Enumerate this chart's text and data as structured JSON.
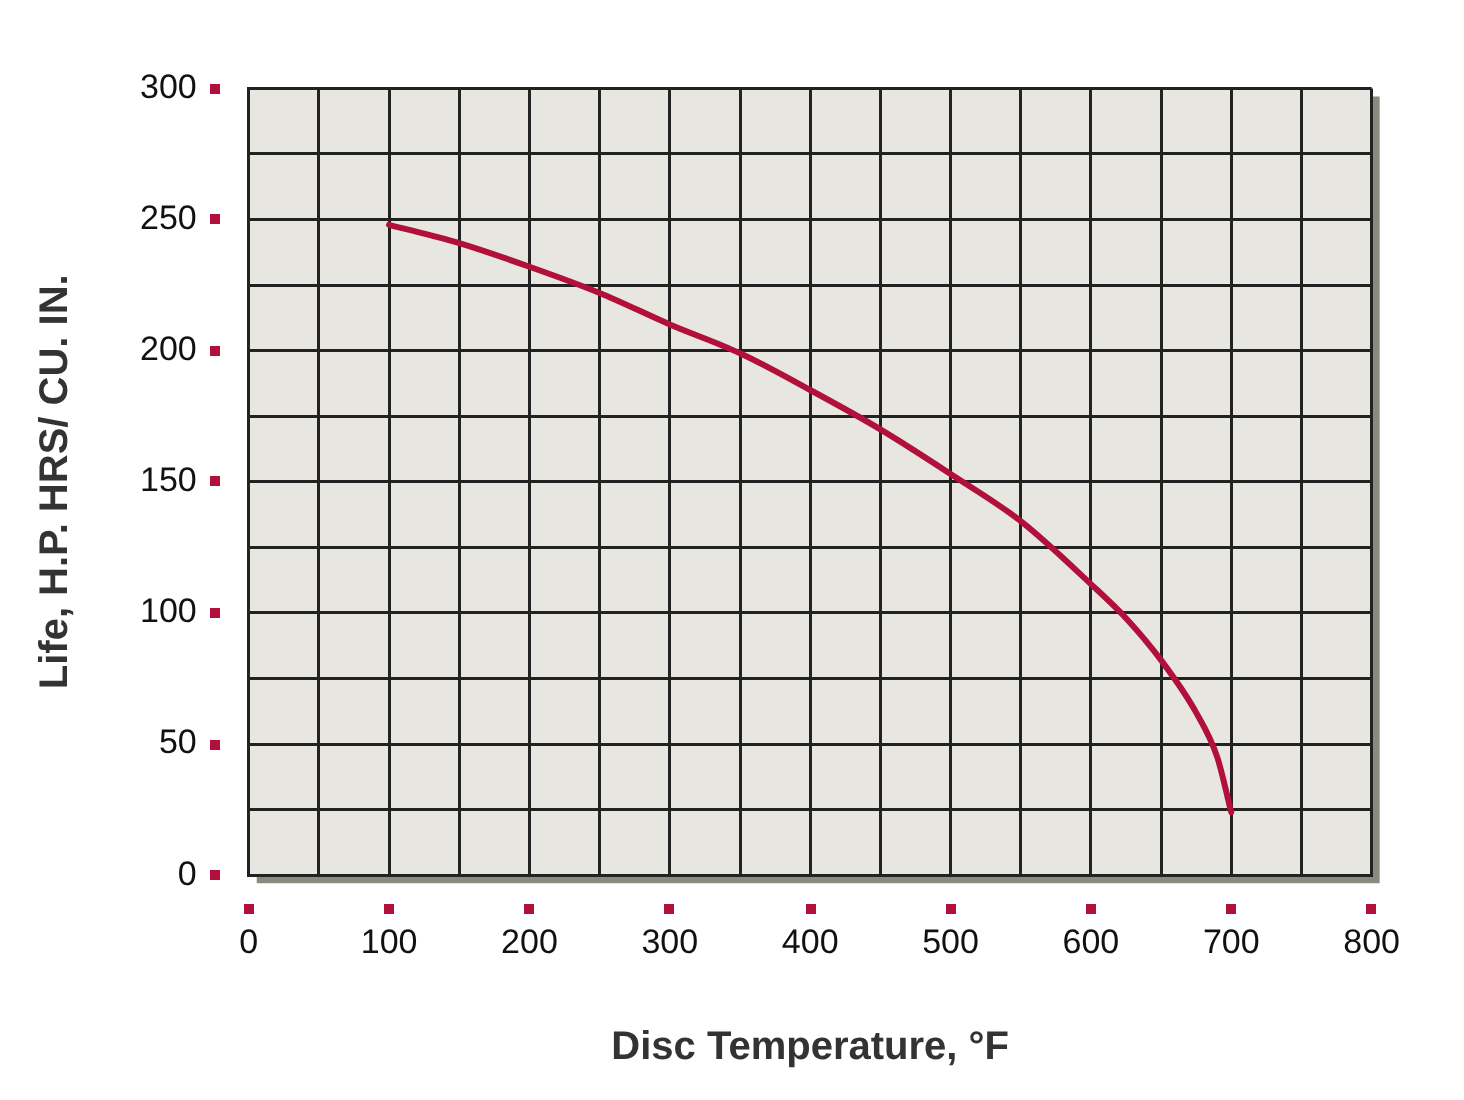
{
  "chart_data": {
    "type": "line",
    "xlabel": "Disc Temperature, °F",
    "ylabel": "Life, H.P. HRS/ CU. IN.",
    "x": [
      100,
      150,
      200,
      250,
      300,
      350,
      400,
      450,
      500,
      550,
      600,
      625,
      650,
      675,
      690,
      700
    ],
    "series": [
      {
        "color": "#b0103a",
        "values": [
          248,
          241,
          232,
          222,
          210,
          199,
          185,
          170,
          153,
          135,
          111,
          98,
          82,
          62,
          45,
          24
        ]
      }
    ],
    "xlim": [
      0,
      800
    ],
    "ylim": [
      0,
      300
    ],
    "xticks": [
      0,
      {
        "value": 50,
        "label": null
      },
      100,
      {
        "value": 150,
        "label": null
      },
      200,
      {
        "value": 250,
        "label": null
      },
      300,
      {
        "value": 350,
        "label": null
      },
      400,
      {
        "value": 450,
        "label": null
      },
      500,
      {
        "value": 550,
        "label": null
      },
      600,
      {
        "value": 650,
        "label": null
      },
      700,
      {
        "value": 750,
        "label": null
      },
      800
    ],
    "yticks": [
      0,
      {
        "value": 25,
        "label": null
      },
      50,
      {
        "value": 75,
        "label": null
      },
      100,
      {
        "value": 125,
        "label": null
      },
      150,
      {
        "value": 175,
        "label": null
      },
      200,
      {
        "value": 225,
        "label": null
      },
      250,
      {
        "value": 275,
        "label": null
      },
      300
    ],
    "grid": true,
    "marker": "none",
    "line_style": "solid",
    "legend": false
  }
}
